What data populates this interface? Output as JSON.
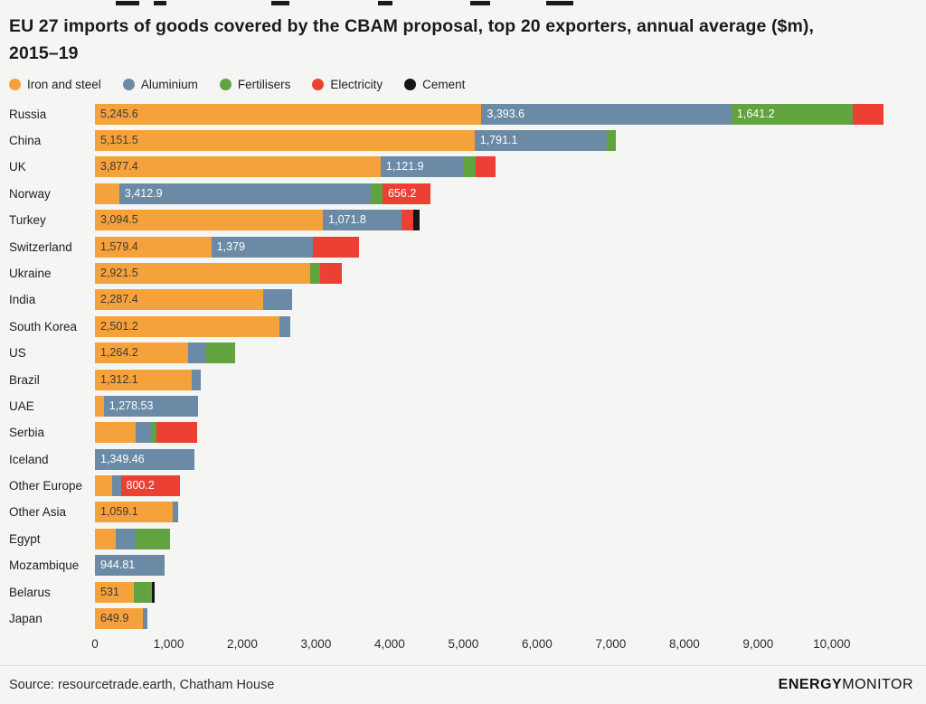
{
  "footer": {
    "source": "Source: resourcetrade.earth, Chatham House",
    "brand_bold": "ENERGY",
    "brand_light": "MONITOR"
  },
  "chart_data": {
    "type": "bar",
    "orientation": "horizontal",
    "stacked": true,
    "title": "EU 27 imports of goods covered by the CBAM proposal, top 20 exporters, annual average ($m), 2015–19",
    "legend_position": "top",
    "grid": false,
    "series_names": [
      "Iron and steel",
      "Aluminium",
      "Fertilisers",
      "Electricity",
      "Cement"
    ],
    "series_colors": [
      "#f6a23c",
      "#6b8aa5",
      "#60a33f",
      "#ec4034",
      "#161616"
    ],
    "label_color_on_first_series": "#3d3a34",
    "label_color_on_other_series": "#ffffff",
    "xlim": [
      0,
      10800
    ],
    "x_ticks": [
      "0",
      "1,000",
      "2,000",
      "3,000",
      "4,000",
      "5,000",
      "6,000",
      "7,000",
      "8,000",
      "9,000",
      "10,000"
    ],
    "rows": [
      {
        "label": "Russia",
        "values": [
          5245.6,
          3393.6,
          1641.2,
          420,
          0
        ],
        "value_labels": [
          "5,245.6",
          "3,393.6",
          "1,641.2",
          "",
          ""
        ]
      },
      {
        "label": "China",
        "values": [
          5151.5,
          1791.1,
          130,
          0,
          0
        ],
        "value_labels": [
          "5,151.5",
          "1,791.1",
          "",
          "",
          ""
        ]
      },
      {
        "label": "UK",
        "values": [
          3877.4,
          1121.9,
          170,
          270,
          0
        ],
        "value_labels": [
          "3,877.4",
          "1,121.9",
          "",
          "",
          ""
        ]
      },
      {
        "label": "Norway",
        "values": [
          330,
          3412.9,
          160,
          656.2,
          0
        ],
        "value_labels": [
          "",
          "3,412.9",
          "",
          "656.2",
          ""
        ]
      },
      {
        "label": "Turkey",
        "values": [
          3094.5,
          1071.8,
          0,
          150,
          90
        ],
        "value_labels": [
          "3,094.5",
          "1,071.8",
          "",
          "",
          ""
        ]
      },
      {
        "label": "Switzerland",
        "values": [
          1579.4,
          1379,
          0,
          620,
          0
        ],
        "value_labels": [
          "1,579.4",
          "1,379",
          "",
          "",
          ""
        ]
      },
      {
        "label": "Ukraine",
        "values": [
          2921.5,
          0,
          140,
          290,
          0
        ],
        "value_labels": [
          "2,921.5",
          "",
          "",
          "",
          ""
        ]
      },
      {
        "label": "India",
        "values": [
          2287.4,
          385,
          0,
          0,
          0
        ],
        "value_labels": [
          "2,287.4",
          "",
          "",
          "",
          ""
        ]
      },
      {
        "label": "South Korea",
        "values": [
          2501.2,
          150,
          0,
          0,
          0
        ],
        "value_labels": [
          "2,501.2",
          "",
          "",
          "",
          ""
        ]
      },
      {
        "label": "US",
        "values": [
          1264.2,
          250,
          390,
          0,
          0
        ],
        "value_labels": [
          "1,264.2",
          "",
          "",
          "",
          ""
        ]
      },
      {
        "label": "Brazil",
        "values": [
          1312.1,
          120,
          0,
          0,
          0
        ],
        "value_labels": [
          "1,312.1",
          "",
          "",
          "",
          ""
        ]
      },
      {
        "label": "UAE",
        "values": [
          120,
          1278.53,
          0,
          0,
          0
        ],
        "value_labels": [
          "",
          "1,278.53",
          "",
          "",
          ""
        ]
      },
      {
        "label": "Serbia",
        "values": [
          550,
          220,
          60,
          560,
          0
        ],
        "value_labels": [
          "",
          "",
          "",
          "",
          ""
        ]
      },
      {
        "label": "Iceland",
        "values": [
          0,
          1349.46,
          0,
          0,
          0
        ],
        "value_labels": [
          "",
          "1,349.46",
          "",
          "",
          ""
        ]
      },
      {
        "label": "Other Europe",
        "values": [
          230,
          120,
          0,
          800.2,
          0
        ],
        "value_labels": [
          "",
          "",
          "",
          "800.2",
          ""
        ]
      },
      {
        "label": "Other Asia",
        "values": [
          1059.1,
          70,
          0,
          0,
          0
        ],
        "value_labels": [
          "1,059.1",
          "",
          "",
          "",
          ""
        ]
      },
      {
        "label": "Egypt",
        "values": [
          280,
          270,
          470,
          0,
          0
        ],
        "value_labels": [
          "",
          "",
          "",
          "",
          ""
        ]
      },
      {
        "label": "Mozambique",
        "values": [
          0,
          944.81,
          0,
          0,
          0
        ],
        "value_labels": [
          "",
          "944.81",
          "",
          "",
          ""
        ]
      },
      {
        "label": "Belarus",
        "values": [
          531,
          0,
          240,
          0,
          40
        ],
        "value_labels": [
          "531",
          "",
          "",
          "",
          ""
        ]
      },
      {
        "label": "Japan",
        "values": [
          649.9,
          60,
          0,
          0,
          0
        ],
        "value_labels": [
          "649.9",
          "",
          "",
          "",
          ""
        ]
      }
    ]
  }
}
